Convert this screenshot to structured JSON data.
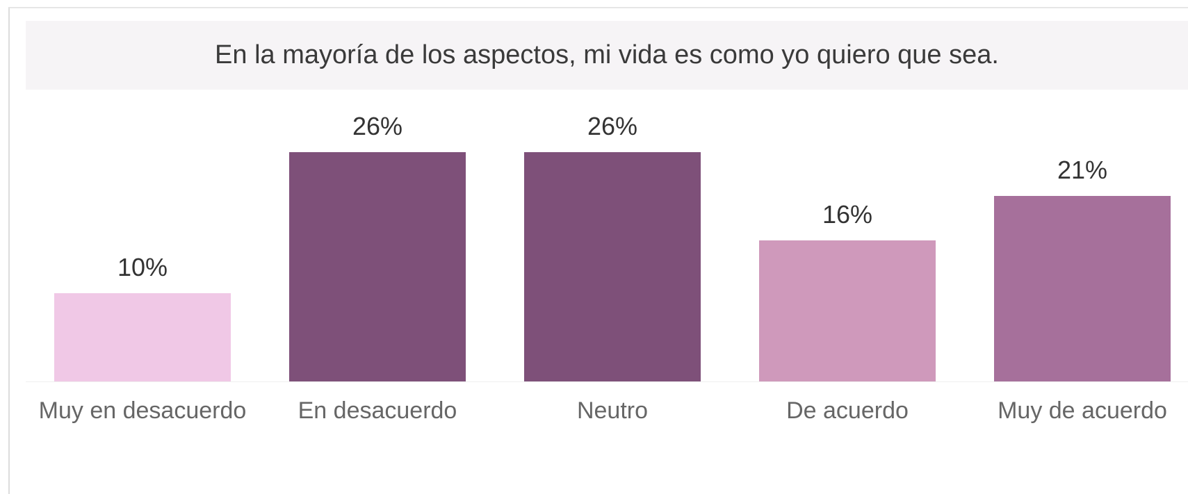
{
  "chart_data": {
    "type": "bar",
    "title": "En la mayoría de los aspectos, mi vida es como yo quiero que sea.",
    "categories": [
      "Muy en desacuerdo",
      "En desacuerdo",
      "Neutro",
      "De acuerdo",
      "Muy de acuerdo"
    ],
    "values": [
      10,
      26,
      26,
      16,
      21
    ],
    "value_labels": [
      "10%",
      "26%",
      "26%",
      "16%",
      "21%"
    ],
    "colors": [
      "#f0c8e6",
      "#7e5079",
      "#7e5079",
      "#cf99bb",
      "#a6709b"
    ]
  }
}
